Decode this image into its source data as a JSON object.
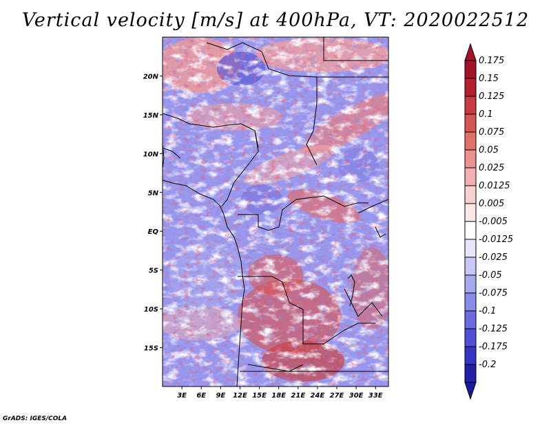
{
  "title": "Vertical velocity [m/s] at 400hPa, VT: 2020022512",
  "credit": "GrADS: IGES/COLA",
  "map": {
    "lon_range": [
      0,
      35
    ],
    "lat_range": [
      -20,
      25
    ],
    "lat_ticks": [
      {
        "value": 20,
        "label": "20N"
      },
      {
        "value": 15,
        "label": "15N"
      },
      {
        "value": 10,
        "label": "10N"
      },
      {
        "value": 5,
        "label": "5N"
      },
      {
        "value": 0,
        "label": "EQ"
      },
      {
        "value": -5,
        "label": "5S"
      },
      {
        "value": -10,
        "label": "10S"
      },
      {
        "value": -15,
        "label": "15S"
      }
    ],
    "lon_ticks": [
      {
        "value": 3,
        "label": "3E"
      },
      {
        "value": 6,
        "label": "6E"
      },
      {
        "value": 9,
        "label": "9E"
      },
      {
        "value": 12,
        "label": "12E"
      },
      {
        "value": 15,
        "label": "15E"
      },
      {
        "value": 18,
        "label": "18E"
      },
      {
        "value": 21,
        "label": "21E"
      },
      {
        "value": 24,
        "label": "24E"
      },
      {
        "value": 27,
        "label": "27E"
      },
      {
        "value": 30,
        "label": "30E"
      },
      {
        "value": 33,
        "label": "33E"
      }
    ]
  },
  "colorbar": {
    "levels": [
      {
        "label": "0.175",
        "color": "#a01228"
      },
      {
        "label": "0.15",
        "color": "#b42030"
      },
      {
        "label": "0.125",
        "color": "#c83a40"
      },
      {
        "label": "0.1",
        "color": "#d45552"
      },
      {
        "label": "0.075",
        "color": "#e07068"
      },
      {
        "label": "0.05",
        "color": "#ec9090"
      },
      {
        "label": "0.025",
        "color": "#f4b0b0"
      },
      {
        "label": "0.0125",
        "color": "#f8d0d0"
      },
      {
        "label": "0.005",
        "color": "#fce8e8"
      },
      {
        "label": "-0.005",
        "color": "#ffffff"
      },
      {
        "label": "-0.0125",
        "color": "#e6e6fa"
      },
      {
        "label": "-0.025",
        "color": "#c8c8f6"
      },
      {
        "label": "-0.05",
        "color": "#a8a8f0"
      },
      {
        "label": "-0.075",
        "color": "#8a8aea"
      },
      {
        "label": "-0.1",
        "color": "#6c6ce0"
      },
      {
        "label": "-0.125",
        "color": "#5050d4"
      },
      {
        "label": "-0.175",
        "color": "#3434c4"
      },
      {
        "label": "-0.2",
        "color": "#2020a8"
      }
    ],
    "top_color": "#a8102a",
    "bottom_color": "#1a1a9c"
  }
}
